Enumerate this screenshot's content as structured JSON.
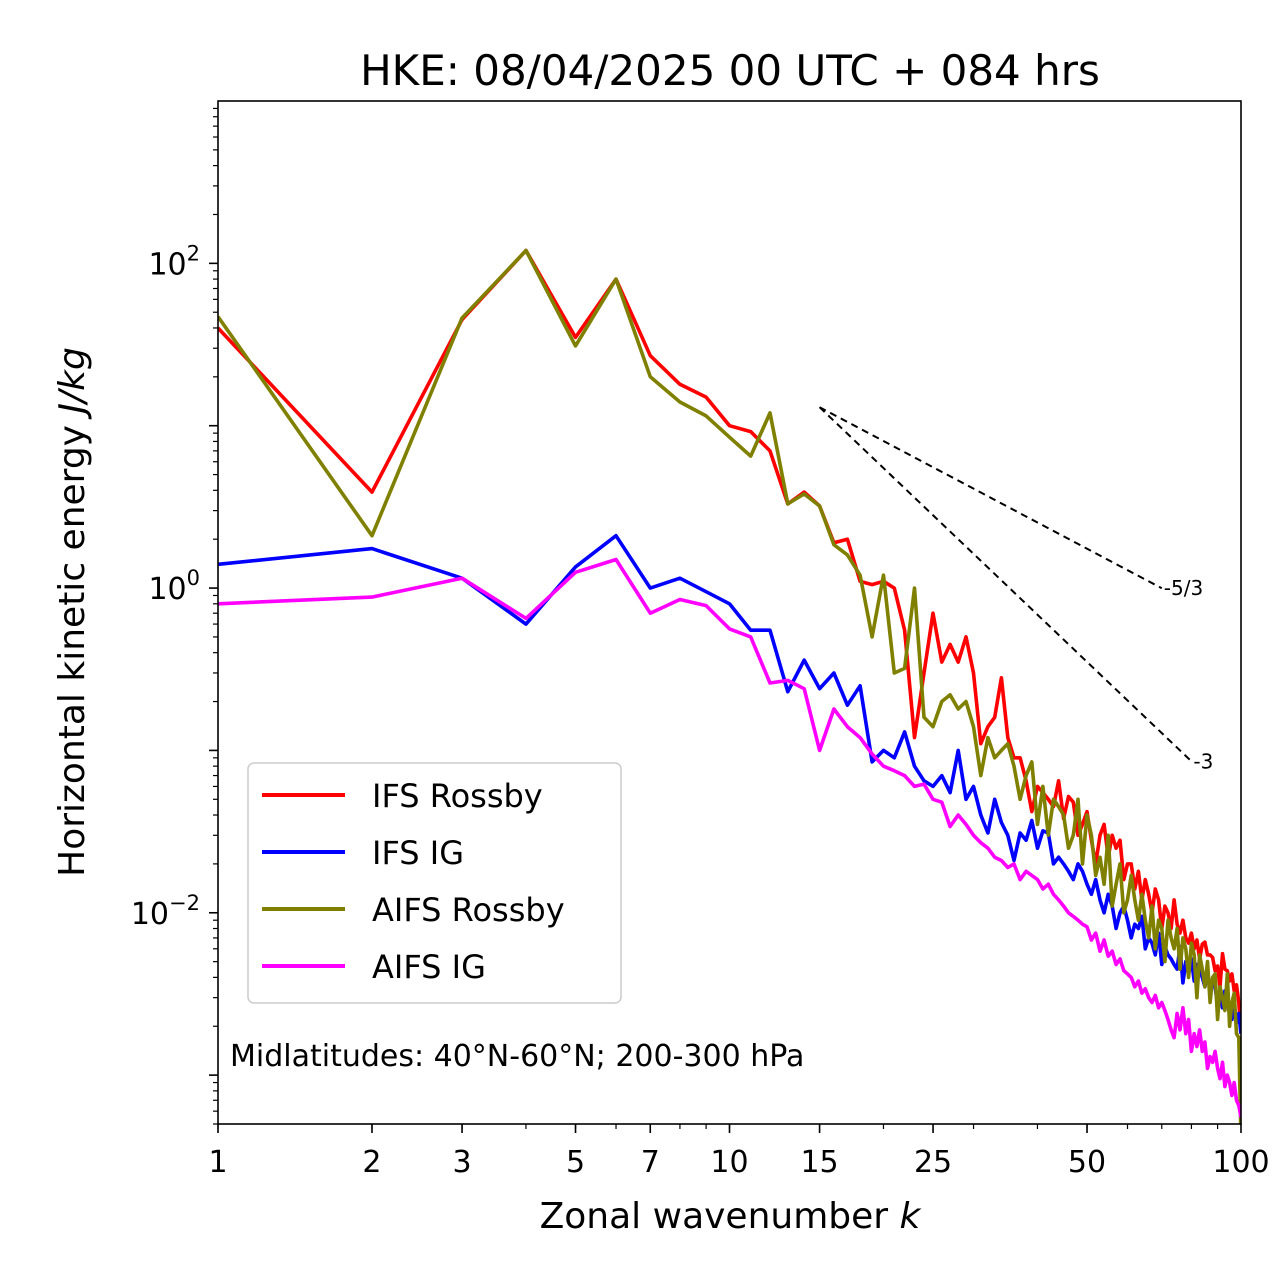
{
  "chart_data": {
    "type": "line",
    "title": "HKE: 08/04/2025 00 UTC + 084 hrs",
    "xlabel": "Zonal wavenumber k",
    "ylabel": "Horizontal kinetic energy J/kg",
    "xscale": "log",
    "yscale": "log",
    "xlim": [
      1,
      100
    ],
    "ylim": [
      0.0005,
      1000
    ],
    "x_ticks": [
      1,
      2,
      3,
      5,
      7,
      10,
      15,
      25,
      50,
      100
    ],
    "x_tick_labels": [
      "1",
      "2",
      "3",
      "5",
      "7",
      "10",
      "15",
      "25",
      "50",
      "100"
    ],
    "y_ticks": [
      0.01,
      1,
      100
    ],
    "y_tick_labels": [
      "10^-2",
      "10^0",
      "10^2"
    ],
    "annotation": "Midlatitudes: 40°N-60°N; 200-300 hPa",
    "reference_lines": [
      {
        "label": "-5/3",
        "slope": -1.6667,
        "x": [
          15,
          70
        ],
        "y_start": 13,
        "color": "#000000"
      },
      {
        "label": "-3",
        "slope": -3,
        "x": [
          15,
          80
        ],
        "y_start": 13,
        "color": "#000000"
      }
    ],
    "legend_position": "lower-left",
    "grid": false,
    "series": [
      {
        "name": "IFS Rossby",
        "color": "#ff0000",
        "x": [
          1,
          2,
          3,
          4,
          5,
          6,
          7,
          8,
          9,
          10,
          11,
          12,
          13,
          14,
          15,
          16,
          17,
          18,
          19,
          20,
          21,
          22,
          23,
          24,
          25,
          26,
          27,
          28,
          29,
          30,
          31,
          32,
          33,
          34,
          35,
          36,
          37,
          38,
          39,
          40,
          41,
          42,
          43,
          44,
          45,
          46,
          47,
          48,
          49,
          50,
          51,
          52,
          53,
          54,
          55,
          56,
          57,
          58,
          59,
          60,
          61,
          62,
          63,
          64,
          65,
          66,
          67,
          68,
          69,
          70,
          71,
          72,
          73,
          74,
          75,
          76,
          77,
          78,
          79,
          80,
          81,
          82,
          83,
          84,
          85,
          86,
          87,
          88,
          89,
          90,
          91,
          92,
          93,
          94,
          95,
          96,
          97,
          98,
          99,
          100
        ],
        "y": [
          40,
          3.9,
          45,
          120,
          35,
          80,
          27,
          18,
          15,
          10,
          9.2,
          7.0,
          3.3,
          3.9,
          3.2,
          1.9,
          2.0,
          1.1,
          1.05,
          1.1,
          1.0,
          0.55,
          0.12,
          0.3,
          0.7,
          0.35,
          0.45,
          0.35,
          0.5,
          0.3,
          0.11,
          0.14,
          0.16,
          0.28,
          0.12,
          0.09,
          0.09,
          0.065,
          0.042,
          0.06,
          0.055,
          0.05,
          0.045,
          0.065,
          0.038,
          0.052,
          0.048,
          0.03,
          0.035,
          0.042,
          0.028,
          0.02,
          0.03,
          0.035,
          0.022,
          0.03,
          0.025,
          0.028,
          0.016,
          0.02,
          0.02,
          0.014,
          0.018,
          0.012,
          0.016,
          0.013,
          0.01,
          0.014,
          0.012,
          0.008,
          0.011,
          0.01,
          0.008,
          0.012,
          0.0085,
          0.0075,
          0.009,
          0.007,
          0.0065,
          0.0075,
          0.006,
          0.0068,
          0.0052,
          0.0064,
          0.0066,
          0.0055,
          0.0055,
          0.0053,
          0.0044,
          0.0047,
          0.0035,
          0.0056,
          0.0045,
          0.0044,
          0.0038,
          0.0042,
          0.0033,
          0.0036,
          0.0028,
          0.0018
        ]
      },
      {
        "name": "IFS IG",
        "color": "#0000ff",
        "x": [
          1,
          2,
          3,
          4,
          5,
          6,
          7,
          8,
          9,
          10,
          11,
          12,
          13,
          14,
          15,
          16,
          17,
          18,
          19,
          20,
          21,
          22,
          23,
          24,
          25,
          26,
          27,
          28,
          29,
          30,
          31,
          32,
          33,
          34,
          35,
          36,
          37,
          38,
          39,
          40,
          41,
          42,
          43,
          44,
          45,
          46,
          47,
          48,
          49,
          50,
          51,
          52,
          53,
          54,
          55,
          56,
          57,
          58,
          59,
          60,
          61,
          62,
          63,
          64,
          65,
          66,
          67,
          68,
          69,
          70,
          71,
          72,
          73,
          74,
          75,
          76,
          77,
          78,
          79,
          80,
          81,
          82,
          83,
          84,
          85,
          86,
          87,
          88,
          89,
          90,
          91,
          92,
          93,
          94,
          95,
          96,
          97,
          98,
          99,
          100
        ],
        "y": [
          1.4,
          1.75,
          1.15,
          0.6,
          1.35,
          2.1,
          1.0,
          1.15,
          0.95,
          0.8,
          0.55,
          0.55,
          0.23,
          0.36,
          0.24,
          0.3,
          0.19,
          0.25,
          0.085,
          0.1,
          0.09,
          0.13,
          0.08,
          0.065,
          0.06,
          0.07,
          0.055,
          0.1,
          0.05,
          0.06,
          0.04,
          0.031,
          0.05,
          0.036,
          0.03,
          0.021,
          0.031,
          0.028,
          0.037,
          0.025,
          0.032,
          0.031,
          0.02,
          0.022,
          0.02,
          0.018,
          0.016,
          0.02,
          0.018,
          0.015,
          0.013,
          0.016,
          0.012,
          0.01,
          0.013,
          0.011,
          0.008,
          0.01,
          0.011,
          0.009,
          0.007,
          0.0085,
          0.008,
          0.0095,
          0.006,
          0.007,
          0.0065,
          0.0055,
          0.0075,
          0.0048,
          0.0062,
          0.0055,
          0.0052,
          0.0048,
          0.0045,
          0.0062,
          0.0037,
          0.005,
          0.0042,
          0.0052,
          0.0038,
          0.0048,
          0.0045,
          0.004,
          0.0035,
          0.0044,
          0.0032,
          0.0038,
          0.0035,
          0.0027,
          0.0032,
          0.0026,
          0.0033,
          0.0028,
          0.0024,
          0.0022,
          0.0026,
          0.0021,
          0.0024,
          0.0018
        ]
      },
      {
        "name": "AIFS Rossby",
        "color": "#808000",
        "x": [
          1,
          2,
          3,
          4,
          5,
          6,
          7,
          8,
          9,
          10,
          11,
          12,
          13,
          14,
          15,
          16,
          17,
          18,
          19,
          20,
          21,
          22,
          23,
          24,
          25,
          26,
          27,
          28,
          29,
          30,
          31,
          32,
          33,
          34,
          35,
          36,
          37,
          38,
          39,
          40,
          41,
          42,
          43,
          44,
          45,
          46,
          47,
          48,
          49,
          50,
          51,
          52,
          53,
          54,
          55,
          56,
          57,
          58,
          59,
          60,
          61,
          62,
          63,
          64,
          65,
          66,
          67,
          68,
          69,
          70,
          71,
          72,
          73,
          74,
          75,
          76,
          77,
          78,
          79,
          80,
          81,
          82,
          83,
          84,
          85,
          86,
          87,
          88,
          89,
          90,
          91,
          92,
          93,
          94,
          95,
          96,
          97,
          98,
          99,
          100
        ],
        "y": [
          47,
          2.1,
          46,
          120,
          31,
          80,
          20,
          14,
          11.5,
          8.5,
          6.5,
          12,
          3.3,
          3.8,
          3.2,
          1.85,
          1.6,
          1.2,
          0.5,
          1.2,
          0.3,
          0.32,
          1.0,
          0.16,
          0.14,
          0.2,
          0.22,
          0.18,
          0.2,
          0.14,
          0.07,
          0.12,
          0.09,
          0.1,
          0.11,
          0.08,
          0.05,
          0.07,
          0.085,
          0.035,
          0.06,
          0.03,
          0.05,
          0.045,
          0.04,
          0.025,
          0.03,
          0.05,
          0.02,
          0.04,
          0.03,
          0.017,
          0.022,
          0.015,
          0.03,
          0.011,
          0.015,
          0.02,
          0.01,
          0.012,
          0.017,
          0.012,
          0.009,
          0.013,
          0.009,
          0.007,
          0.011,
          0.006,
          0.009,
          0.008,
          0.005,
          0.009,
          0.007,
          0.006,
          0.008,
          0.0045,
          0.007,
          0.006,
          0.004,
          0.0065,
          0.0055,
          0.003,
          0.0055,
          0.0045,
          0.0035,
          0.005,
          0.0028,
          0.004,
          0.0042,
          0.0022,
          0.0035,
          0.003,
          0.0025,
          0.0042,
          0.002,
          0.0028,
          0.0032,
          0.0018,
          0.0017,
          0.0004
        ]
      },
      {
        "name": "AIFS IG",
        "color": "#ff00ff",
        "x": [
          1,
          2,
          3,
          4,
          5,
          6,
          7,
          8,
          9,
          10,
          11,
          12,
          13,
          14,
          15,
          16,
          17,
          18,
          19,
          20,
          21,
          22,
          23,
          24,
          25,
          26,
          27,
          28,
          29,
          30,
          31,
          32,
          33,
          34,
          35,
          36,
          37,
          38,
          39,
          40,
          41,
          42,
          43,
          44,
          45,
          46,
          47,
          48,
          49,
          50,
          51,
          52,
          53,
          54,
          55,
          56,
          57,
          58,
          59,
          60,
          61,
          62,
          63,
          64,
          65,
          66,
          67,
          68,
          69,
          70,
          71,
          72,
          73,
          74,
          75,
          76,
          77,
          78,
          79,
          80,
          81,
          82,
          83,
          84,
          85,
          86,
          87,
          88,
          89,
          90,
          91,
          92,
          93,
          94,
          95,
          96,
          97,
          98,
          99,
          100
        ],
        "y": [
          0.8,
          0.88,
          1.15,
          0.65,
          1.25,
          1.5,
          0.7,
          0.85,
          0.78,
          0.56,
          0.5,
          0.26,
          0.27,
          0.24,
          0.1,
          0.18,
          0.14,
          0.12,
          0.095,
          0.08,
          0.075,
          0.07,
          0.06,
          0.062,
          0.05,
          0.048,
          0.034,
          0.04,
          0.035,
          0.03,
          0.027,
          0.025,
          0.022,
          0.021,
          0.019,
          0.02,
          0.016,
          0.018,
          0.017,
          0.016,
          0.014,
          0.015,
          0.013,
          0.012,
          0.011,
          0.01,
          0.0095,
          0.009,
          0.0085,
          0.0082,
          0.0068,
          0.0075,
          0.0058,
          0.0068,
          0.0054,
          0.0058,
          0.0048,
          0.0052,
          0.0044,
          0.0042,
          0.004,
          0.0035,
          0.0038,
          0.0032,
          0.0034,
          0.003,
          0.0028,
          0.0031,
          0.0026,
          0.0028,
          0.0025,
          0.0022,
          0.0019,
          0.0017,
          0.0024,
          0.0019,
          0.0026,
          0.0018,
          0.0022,
          0.0014,
          0.0018,
          0.0015,
          0.0019,
          0.0014,
          0.0016,
          0.0011,
          0.0013,
          0.0012,
          0.0014,
          0.0011,
          0.00095,
          0.0012,
          0.00085,
          0.001,
          0.0009,
          0.00075,
          0.0009,
          0.0007,
          0.00065,
          0.00055
        ]
      }
    ]
  }
}
